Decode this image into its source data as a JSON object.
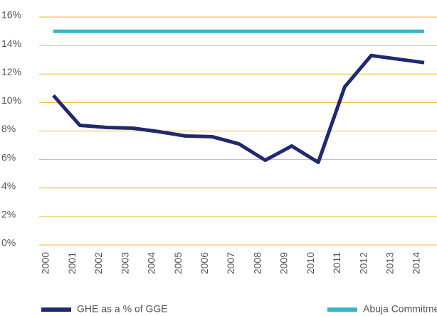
{
  "chart_data": {
    "type": "line",
    "categories": [
      "2000",
      "2001",
      "2002",
      "2003",
      "2004",
      "2005",
      "2006",
      "2007",
      "2008",
      "2009",
      "2010",
      "2011",
      "2012",
      "2013",
      "2014"
    ],
    "series": [
      {
        "name": "GHE as a % of GGE",
        "color": "#1f2a6e",
        "values": [
          10.5,
          8.4,
          8.25,
          8.2,
          7.95,
          7.65,
          7.6,
          7.1,
          5.95,
          6.95,
          5.8,
          11.1,
          13.3,
          13.05,
          12.8
        ]
      },
      {
        "name": "Abuja Commitment",
        "color": "#3ab5c8",
        "values": [
          15,
          15,
          15,
          15,
          15,
          15,
          15,
          15,
          15,
          15,
          15,
          15,
          15,
          15,
          15
        ]
      }
    ],
    "ylim": [
      0,
      16
    ],
    "yticks": [
      {
        "value": 0,
        "label": "0%"
      },
      {
        "value": 2,
        "label": "2%"
      },
      {
        "value": 4,
        "label": "4%"
      },
      {
        "value": 6,
        "label": "6%"
      },
      {
        "value": 8,
        "label": "8%"
      },
      {
        "value": 10,
        "label": "10%"
      },
      {
        "value": 12,
        "label": "12%"
      },
      {
        "value": 14,
        "label": "14%"
      },
      {
        "value": 16,
        "label": "16%"
      }
    ],
    "grid": true,
    "grid_color": "#f2b631",
    "legend": "bottom"
  }
}
